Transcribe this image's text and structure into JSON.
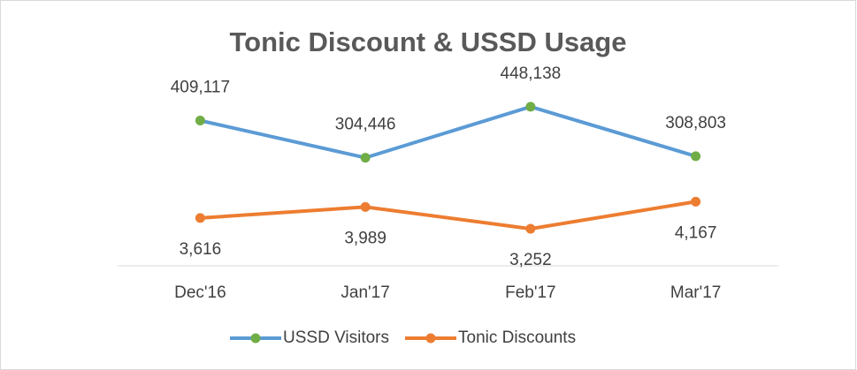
{
  "chart_data": {
    "type": "line",
    "title": "Tonic Discount & USSD Usage",
    "categories": [
      "Dec'16",
      "Jan'17",
      "Feb'17",
      "Mar'17"
    ],
    "series": [
      {
        "name": "USSD Visitors",
        "color": "#5b9bd5",
        "values": [
          409117,
          304446,
          448138,
          308803
        ],
        "value_labels": [
          "409,117",
          "304,446",
          "448,138",
          "308,803"
        ]
      },
      {
        "name": "Tonic Discounts",
        "color": "#ed7d31",
        "axis": "y2",
        "values": [
          3616,
          3989,
          3252,
          4167
        ],
        "value_labels": [
          "3,616",
          "3,989",
          "3,252",
          "4,167"
        ]
      }
    ],
    "ylim": [
      0,
      500000
    ],
    "y2lim": [
      2000,
      8000
    ],
    "marker_color": "#70ad47",
    "grid": false,
    "legend": "bottom"
  }
}
